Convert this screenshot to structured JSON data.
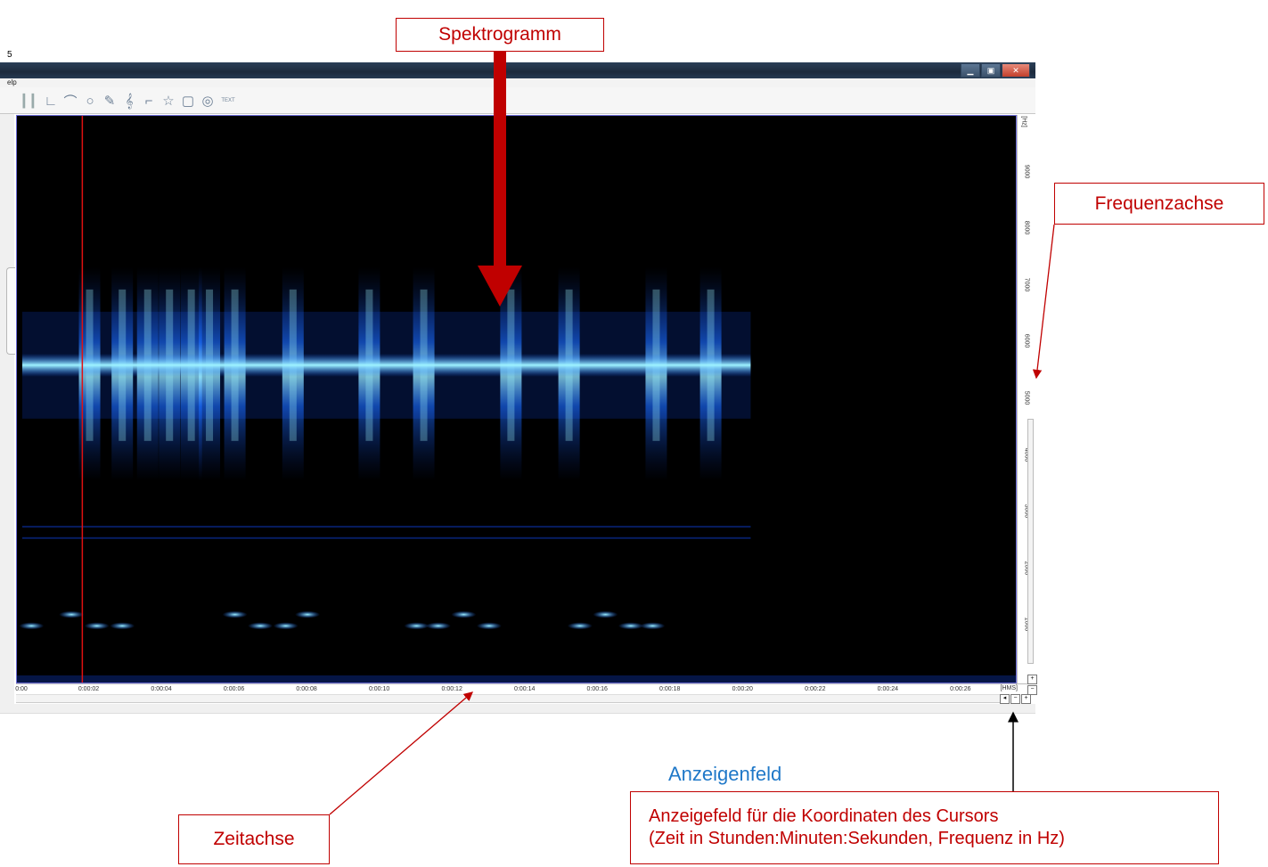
{
  "page_number": "5",
  "window": {
    "menu_text": "elp",
    "buttons": {
      "minimize": "▁",
      "restore": "▣",
      "close": "✕"
    }
  },
  "toolbar": {
    "tools": [
      {
        "name": "grip-handle",
        "glyph": "▎"
      },
      {
        "name": "grip-handle",
        "glyph": "▎"
      },
      {
        "name": "axis-angle-tool",
        "glyph": "∟"
      },
      {
        "name": "arc-tool",
        "glyph": "⌒"
      },
      {
        "name": "circle-tool",
        "glyph": "○"
      },
      {
        "name": "pen-tool",
        "glyph": "✎"
      },
      {
        "name": "treble-clef-tool",
        "glyph": "𝄞"
      },
      {
        "name": "curve-tool",
        "glyph": "⌐"
      },
      {
        "name": "star-tool",
        "glyph": "☆"
      },
      {
        "name": "rounded-rect-tool",
        "glyph": "▢"
      },
      {
        "name": "spiral-tool",
        "glyph": "◎"
      },
      {
        "name": "text-tool",
        "glyph": "TEXT"
      }
    ]
  },
  "frequency_axis": {
    "unit": "[Hz]",
    "ticks": [
      "1000",
      "2000",
      "3000",
      "4000",
      "5000",
      "6000",
      "7000",
      "8000",
      "9000"
    ],
    "max_hz": 10000
  },
  "time_axis": {
    "unit": "[HMS]",
    "ticks": [
      "0:00",
      "0:00:02",
      "0:00:04",
      "0:00:06",
      "0:00:08",
      "0:00:10",
      "0:00:12",
      "0:00:14",
      "0:00:16",
      "0:00:18",
      "0:00:20",
      "0:00:22",
      "0:00:24",
      "0:00:26"
    ],
    "max_seconds": 27.5
  },
  "spectrogram": {
    "colors": {
      "background": "#000000",
      "low": "#0a2a8a",
      "mid": "#1a6cff",
      "high": "#9ff4ff",
      "cursor": "#e01010"
    },
    "cursor_time_s": 1.8,
    "signal_end_s": 20.2,
    "tone_hz": 5600,
    "pulses_s": [
      2.0,
      2.9,
      3.6,
      4.2,
      4.8,
      5.3,
      6.0,
      7.6,
      9.7,
      11.2,
      13.6,
      15.2,
      17.6,
      19.1
    ],
    "low_band_hz": [
      2750,
      2550,
      1200,
      1000
    ]
  },
  "annotations": {
    "spektrogramm": "Spektrogramm",
    "frequenzachse": "Frequenzachse",
    "zeitachse": "Zeitachse",
    "anzeigenfeld": "Anzeigenfeld",
    "anzeigefeld_line1": "Anzeigefeld für die Koordinaten des Cursors",
    "anzeigefeld_line2": "(Zeit in Stunden:Minuten:Sekunden, Frequenz in Hz)"
  }
}
